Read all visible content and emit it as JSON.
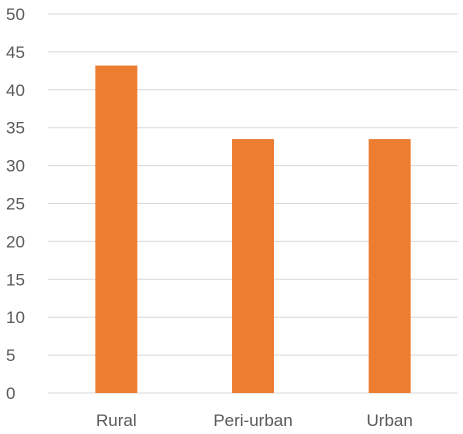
{
  "chart_data": {
    "type": "bar",
    "categories": [
      "Rural",
      "Peri-urban",
      "Urban"
    ],
    "values": [
      43.2,
      33.5,
      33.5
    ],
    "ylim": [
      0,
      50
    ],
    "yticks": [
      0,
      5,
      10,
      15,
      20,
      25,
      30,
      35,
      40,
      45,
      50
    ],
    "grid": true,
    "title": "",
    "xlabel": "",
    "ylabel": "",
    "bar_color": "#ED7D31"
  }
}
